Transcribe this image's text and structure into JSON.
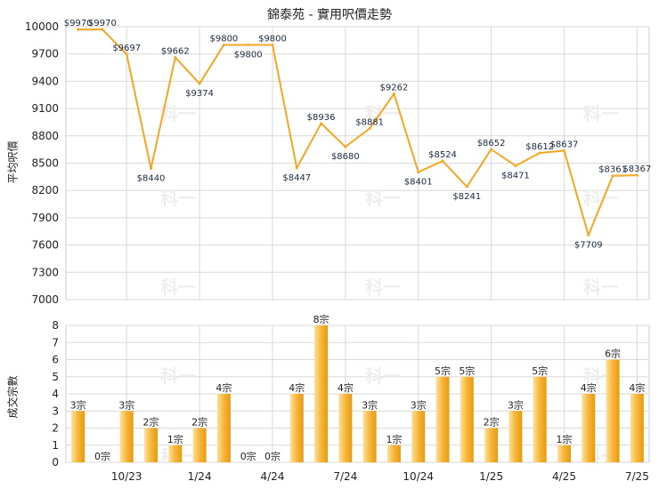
{
  "title": "錦泰苑 - 實用呎價走勢",
  "colors": {
    "line": "#f5a623",
    "bar_light": "#fde29a",
    "bar_dark": "#e89a0c",
    "grid": "#d9d9d9"
  },
  "chart_data": [
    {
      "type": "line",
      "ylabel": "平均呎價",
      "ylim": [
        7000,
        10000
      ],
      "yticks": [
        7000,
        7300,
        7600,
        7900,
        8200,
        8500,
        8800,
        9100,
        9400,
        9700,
        10000
      ],
      "grid": true,
      "points": [
        {
          "i": 0,
          "v": 9970,
          "label": "$9970"
        },
        {
          "i": 1,
          "v": 9970,
          "label": "$9970"
        },
        {
          "i": 2,
          "v": 9697,
          "label": "$9697"
        },
        {
          "i": 3,
          "v": 8440,
          "label": "$8440"
        },
        {
          "i": 4,
          "v": 9662,
          "label": "$9662"
        },
        {
          "i": 5,
          "v": 9374,
          "label": "$9374"
        },
        {
          "i": 6,
          "v": 9800,
          "label": "$9800"
        },
        {
          "i": 7,
          "v": 9800,
          "label": "$9800"
        },
        {
          "i": 8,
          "v": 9800,
          "label": "$9800"
        },
        {
          "i": 9,
          "v": 8447,
          "label": "$8447"
        },
        {
          "i": 10,
          "v": 8936,
          "label": "$8936"
        },
        {
          "i": 11,
          "v": 8680,
          "label": "$8680"
        },
        {
          "i": 12,
          "v": 8881,
          "label": "$8881"
        },
        {
          "i": 13,
          "v": 9262,
          "label": "$9262"
        },
        {
          "i": 14,
          "v": 8401,
          "label": "$8401"
        },
        {
          "i": 15,
          "v": 8524,
          "label": "$8524"
        },
        {
          "i": 16,
          "v": 8241,
          "label": "$8241"
        },
        {
          "i": 17,
          "v": 8652,
          "label": "$8652"
        },
        {
          "i": 18,
          "v": 8471,
          "label": "$8471"
        },
        {
          "i": 19,
          "v": 8612,
          "label": "$8612"
        },
        {
          "i": 20,
          "v": 8637,
          "label": "$8637"
        },
        {
          "i": 21,
          "v": 7709,
          "label": "$7709"
        },
        {
          "i": 22,
          "v": 8361,
          "label": "$8361"
        },
        {
          "i": 23,
          "v": 8367,
          "label": "$8367"
        }
      ]
    },
    {
      "type": "bar",
      "ylabel": "成交宗數",
      "ylim": [
        0,
        8
      ],
      "yticks": [
        0,
        1,
        2,
        3,
        4,
        5,
        6,
        7,
        8
      ],
      "grid": true,
      "values": [
        3,
        0,
        3,
        2,
        1,
        2,
        4,
        0,
        0,
        4,
        8,
        4,
        3,
        1,
        3,
        5,
        5,
        2,
        3,
        5,
        1,
        4,
        6,
        4
      ],
      "labels": [
        "3宗",
        "0宗",
        "3宗",
        "2宗",
        "1宗",
        "2宗",
        "4宗",
        "0宗",
        "0宗",
        "4宗",
        "8宗",
        "4宗",
        "3宗",
        "1宗",
        "3宗",
        "5宗",
        "5宗",
        "2宗",
        "3宗",
        "5宗",
        "1宗",
        "4宗",
        "6宗",
        "4宗"
      ],
      "xticks": [
        {
          "i": 2,
          "label": "10/23"
        },
        {
          "i": 5,
          "label": "1/24"
        },
        {
          "i": 8,
          "label": "4/24"
        },
        {
          "i": 11,
          "label": "7/24"
        },
        {
          "i": 14,
          "label": "10/24"
        },
        {
          "i": 17,
          "label": "1/25"
        },
        {
          "i": 20,
          "label": "4/25"
        },
        {
          "i": 23,
          "label": "7/25"
        }
      ]
    }
  ]
}
